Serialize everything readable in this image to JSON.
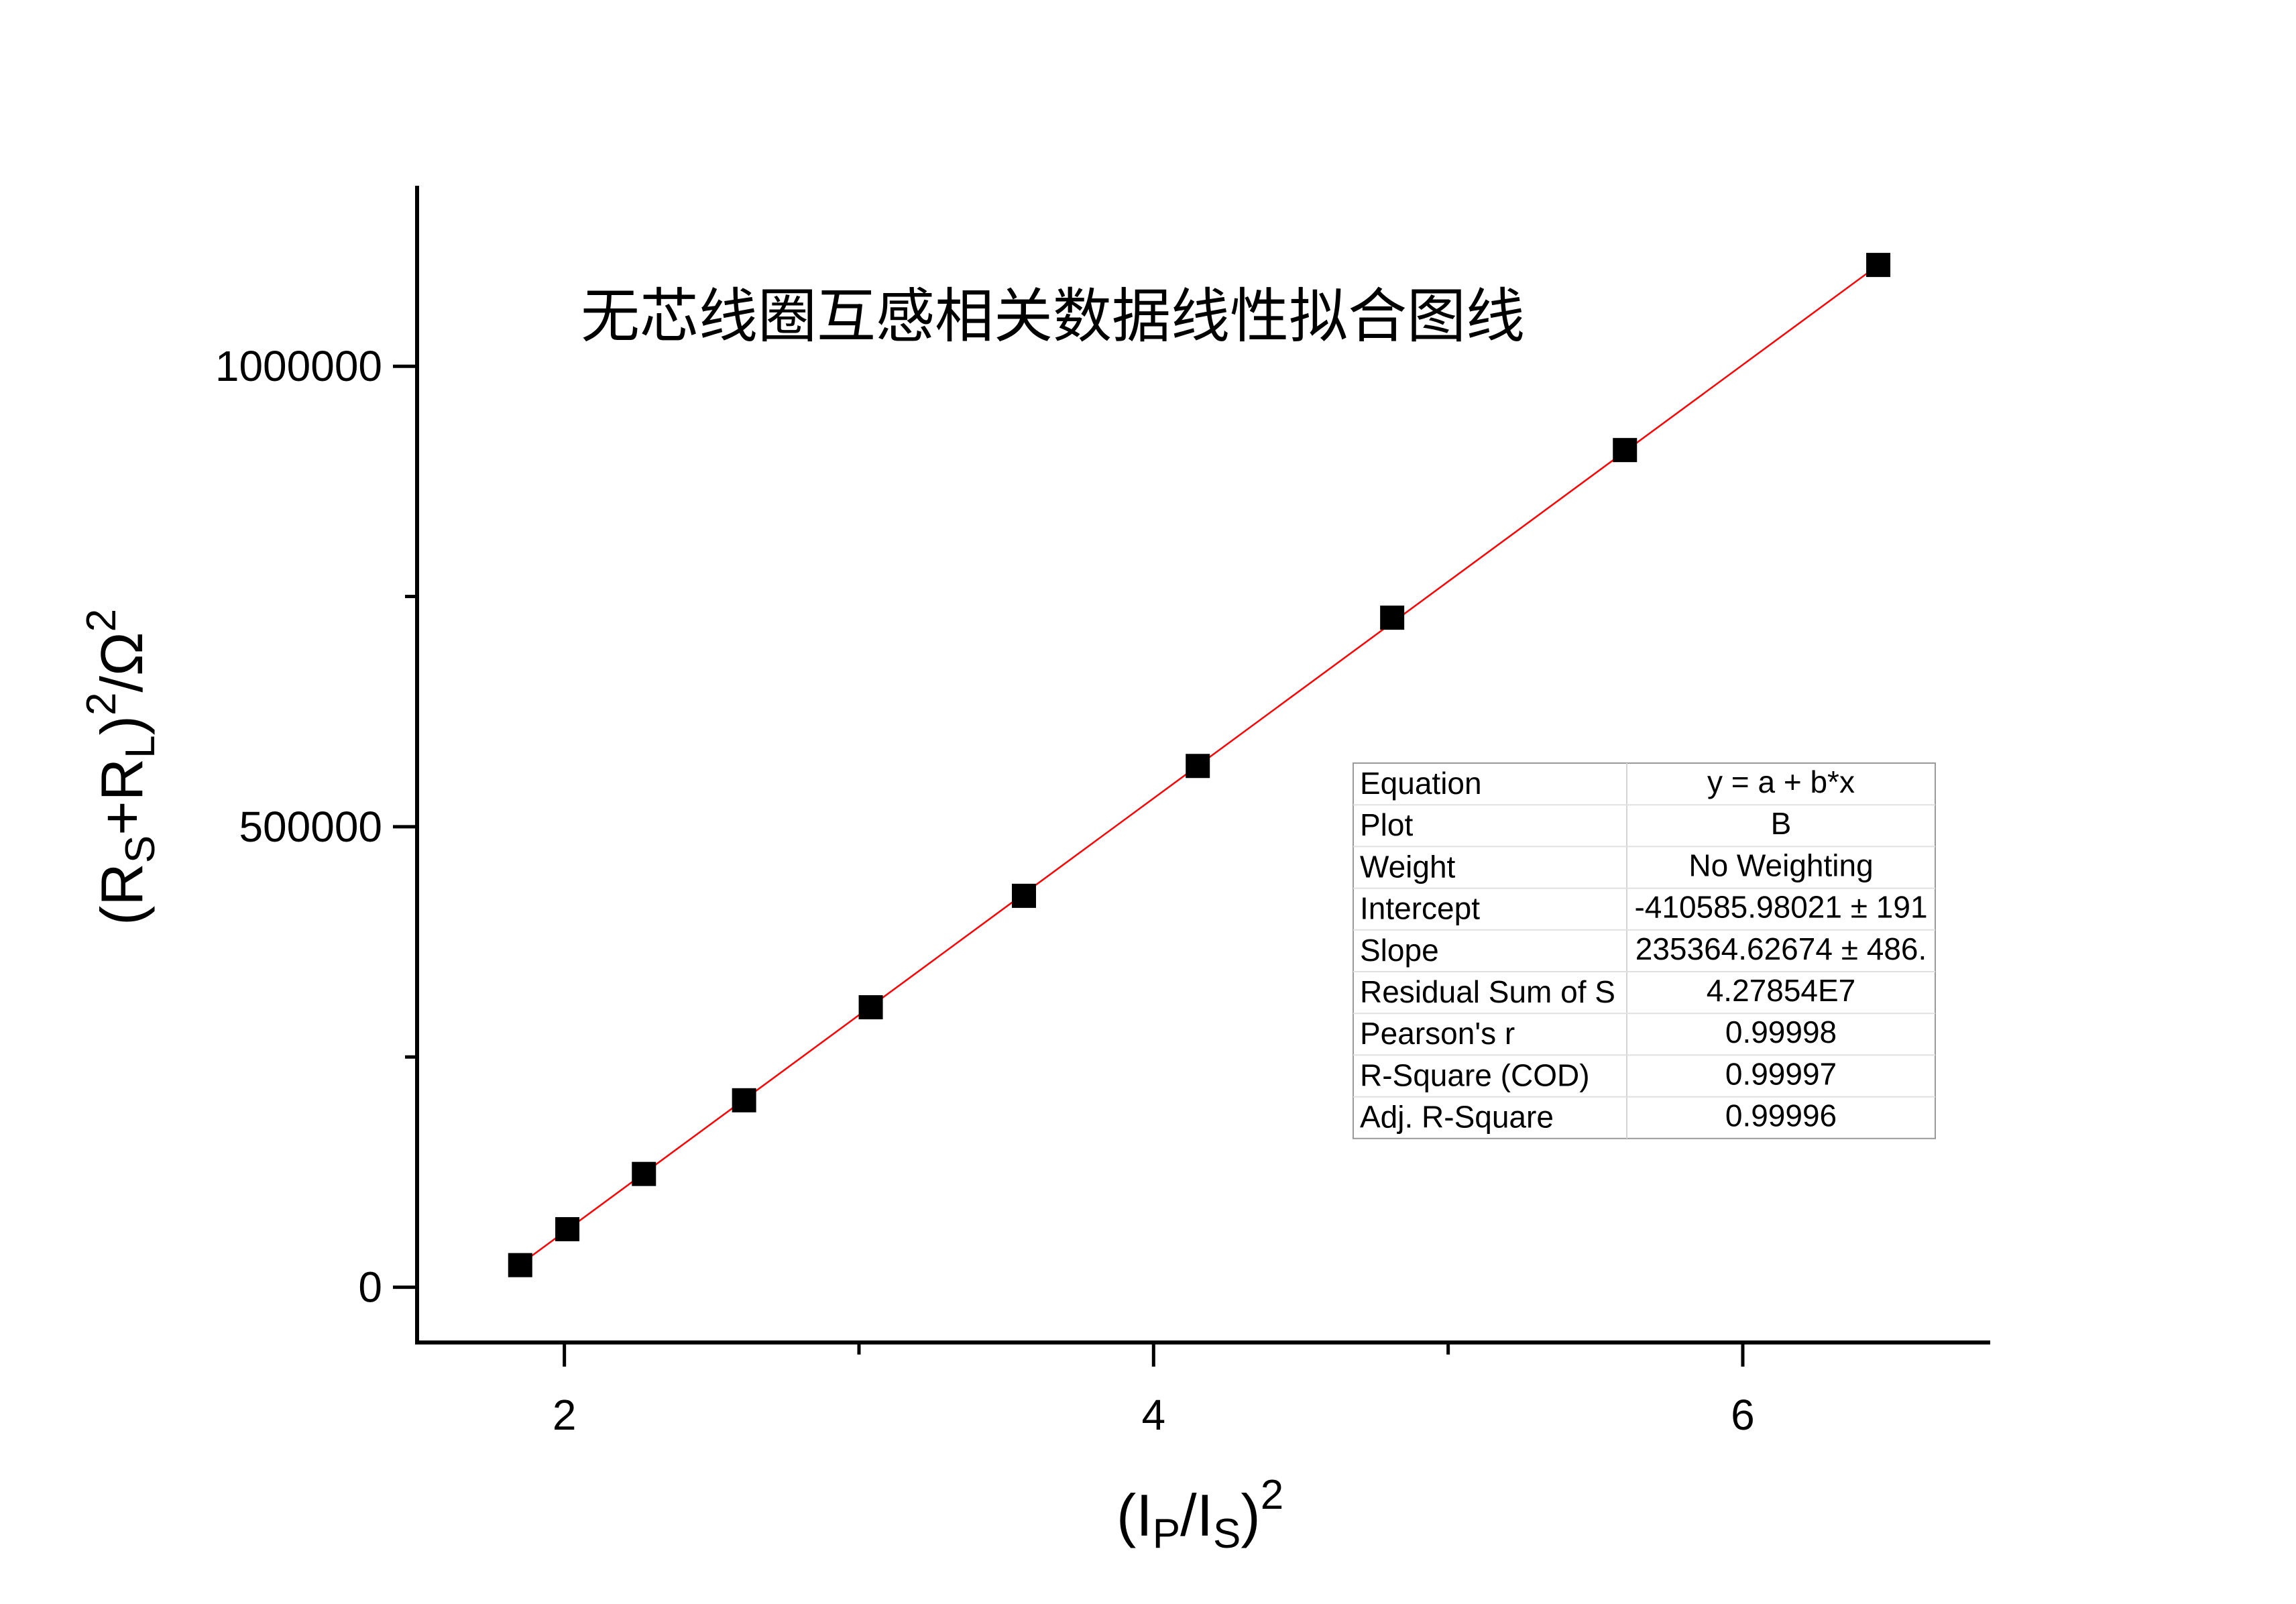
{
  "chart_data": {
    "type": "scatter",
    "title": "无芯线圈互感相关数据线性拟合图线",
    "xlabel": {
      "open": "(I",
      "sub1": "P",
      "mid": "/I",
      "sub2": "S",
      "close": ")",
      "sup": "2"
    },
    "ylabel": {
      "open": "(R",
      "sub1": "S",
      "mid": "+R",
      "sub2": "L",
      "close": ")",
      "sup": "2",
      "unit": "/Ω",
      "sup2": "2"
    },
    "xlim": [
      1.5,
      6.84
    ],
    "ylim": [
      -60000,
      1196000
    ],
    "x_ticks": [
      2,
      4,
      6
    ],
    "x_minor_ticks": [
      3,
      5
    ],
    "y_ticks": [
      0,
      500000,
      1000000
    ],
    "y_minor_ticks": [
      250000,
      750000
    ],
    "x_tick_labels": [
      "2",
      "4",
      "6"
    ],
    "y_tick_labels": [
      "0",
      "500000",
      "1000000"
    ],
    "grid": false,
    "series": [
      {
        "x": [
          1.85,
          2.01,
          2.27,
          2.61,
          3.04,
          3.56,
          4.15,
          4.81,
          5.6,
          6.46
        ],
        "y": [
          24000,
          63000,
          123000,
          203000,
          304000,
          425000,
          566000,
          727000,
          909000,
          1110000
        ],
        "marker": "square",
        "color": "#000000"
      }
    ],
    "fit": {
      "intercept": -410585.98021,
      "slope": 235364.62674,
      "x_range": [
        1.85,
        6.46
      ],
      "color": "#ff0000"
    },
    "stats_table": [
      {
        "key": "Equation",
        "value": "y = a + b*x"
      },
      {
        "key": "Plot",
        "value": "B"
      },
      {
        "key": "Weight",
        "value": "No Weighting"
      },
      {
        "key": "Intercept",
        "value": "-410585.98021 ± 191"
      },
      {
        "key": "Slope",
        "value": "235364.62674 ± 486."
      },
      {
        "key": "Residual Sum of S",
        "value": "4.27854E7"
      },
      {
        "key": "Pearson's r",
        "value": "0.99998"
      },
      {
        "key": "R-Square (COD)",
        "value": "0.99997"
      },
      {
        "key": "Adj. R-Square",
        "value": "0.99996"
      }
    ]
  }
}
